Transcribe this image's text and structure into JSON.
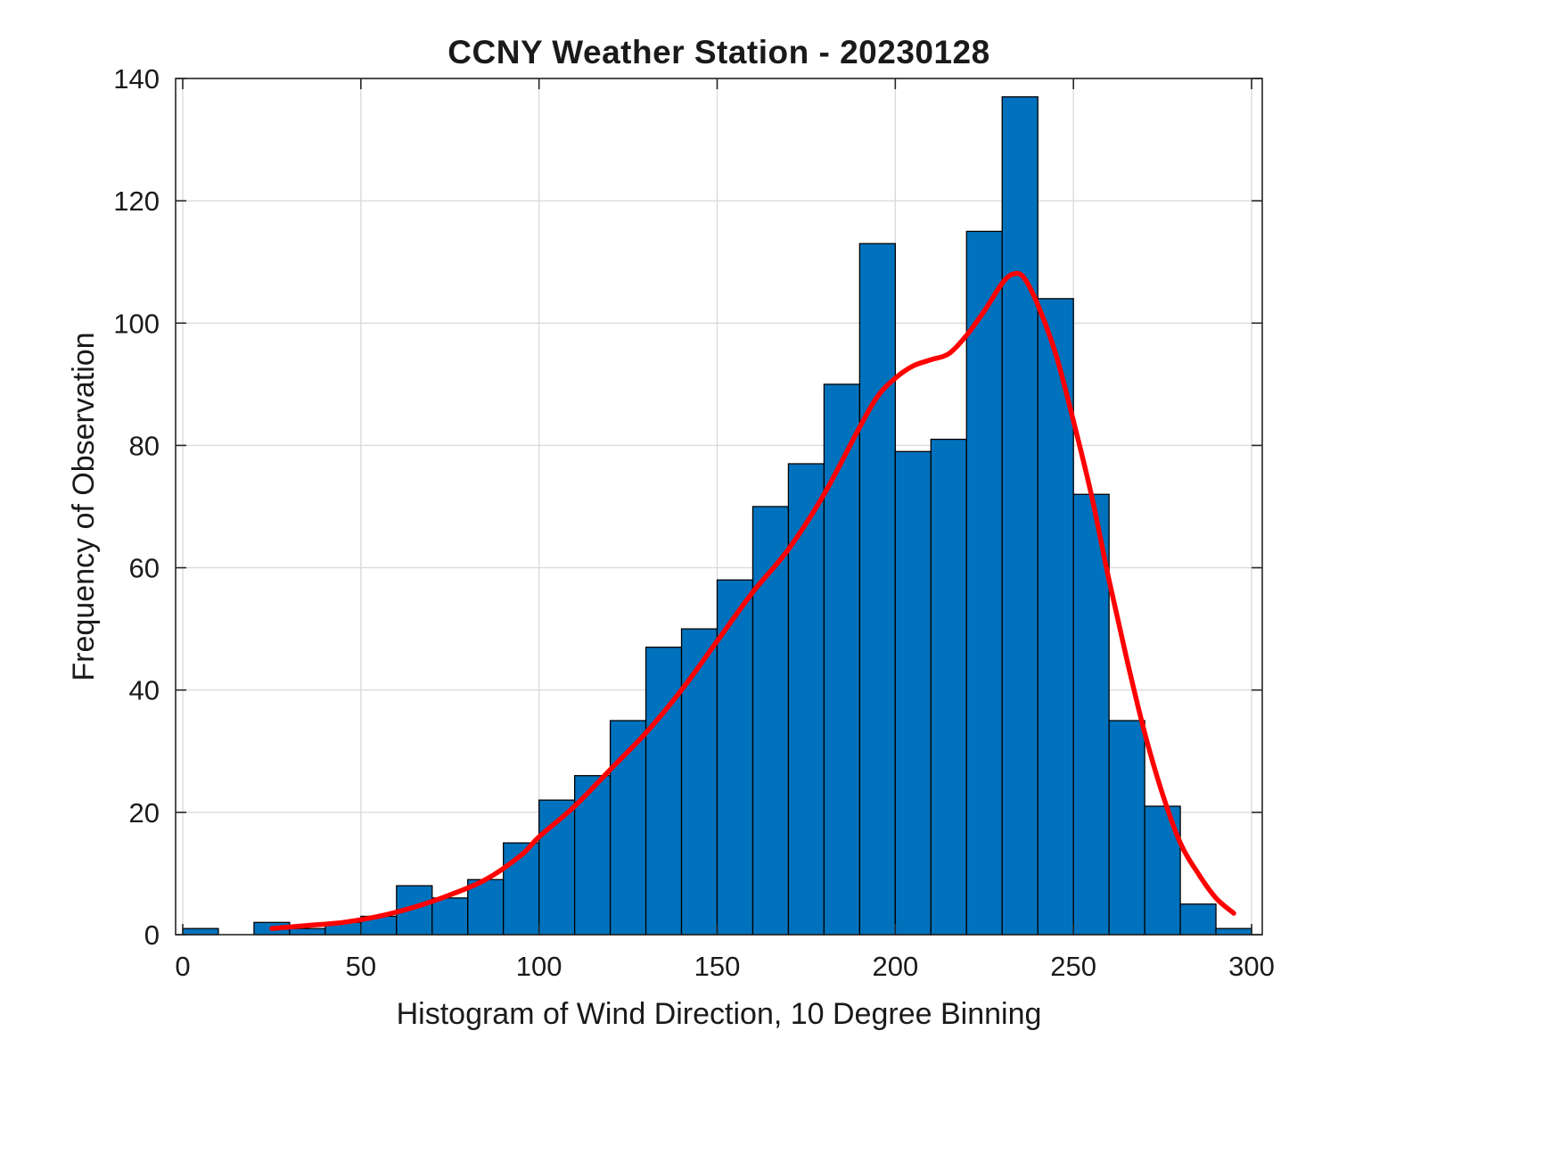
{
  "chart_data": {
    "type": "bar",
    "subtype": "histogram-with-density-fit",
    "title": "CCNY Weather Station - 20230128",
    "xlabel": "Histogram of Wind Direction, 10 Degree Binning",
    "ylabel": "Frequency of Observation",
    "bin_width": 10,
    "bin_edges": [
      0,
      10,
      20,
      30,
      40,
      50,
      60,
      70,
      80,
      90,
      100,
      110,
      120,
      130,
      140,
      150,
      160,
      170,
      180,
      190,
      200,
      210,
      220,
      230,
      240,
      250,
      260,
      270,
      280,
      290,
      300
    ],
    "counts": [
      1,
      0,
      2,
      1,
      2,
      3,
      8,
      6,
      9,
      15,
      22,
      26,
      35,
      47,
      50,
      58,
      70,
      77,
      90,
      113,
      79,
      81,
      115,
      137,
      104,
      72,
      35,
      21,
      5,
      1
    ],
    "xlim": [
      -2,
      303
    ],
    "ylim": [
      0,
      140
    ],
    "xticks": [
      0,
      50,
      100,
      150,
      200,
      250,
      300
    ],
    "yticks": [
      0,
      20,
      40,
      60,
      80,
      100,
      120,
      140
    ],
    "grid": true,
    "legend": false,
    "colors": {
      "bar_fill": "#0072BD",
      "bar_edge": "#000000",
      "curve": "#FF0000",
      "grid": "#DBDBDB",
      "axis": "#262626",
      "text": "#1A1A1A"
    },
    "fit_curve": {
      "name": "kernel-density-fit",
      "x": [
        25,
        35,
        45,
        55,
        65,
        75,
        85,
        95,
        100,
        110,
        120,
        130,
        140,
        150,
        160,
        170,
        180,
        190,
        195,
        200,
        205,
        210,
        215,
        220,
        225,
        230,
        233,
        236,
        240,
        245,
        250,
        255,
        260,
        265,
        270,
        275,
        280,
        285,
        290,
        295
      ],
      "y": [
        1,
        1.5,
        2,
        3,
        4.5,
        6.5,
        9,
        13,
        16,
        21,
        27,
        33,
        40,
        48,
        56,
        63,
        72,
        83,
        88,
        91,
        93,
        94,
        95,
        98,
        102,
        106.5,
        108,
        107.5,
        103,
        95,
        84,
        72,
        58,
        45,
        33,
        23,
        15,
        10,
        6,
        3.5
      ]
    }
  }
}
